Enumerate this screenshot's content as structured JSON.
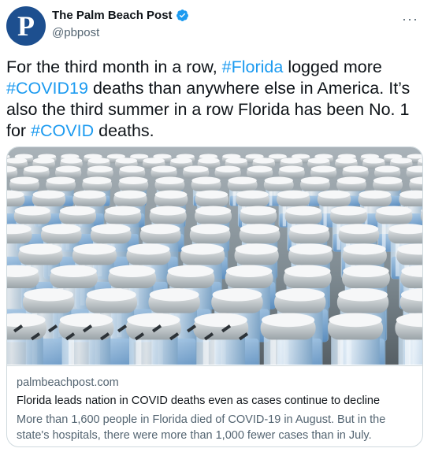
{
  "author": {
    "name": "The Palm Beach Post",
    "handle": "@pbpost",
    "avatar_letter": "P",
    "avatar_color": "#1d4f8f",
    "verified": true,
    "verified_color": "#1d9bf0"
  },
  "menu_icon": "more-dots-icon",
  "tweet": {
    "seg1": "For the third month in a row, ",
    "tag1": "#Florida",
    "seg2": " logged more",
    "tag2": "#COVID19",
    "seg3": " deaths than anywhere else in America. It’s also the third summer in a row Florida has been No. 1 for ",
    "tag3": "#COVID",
    "seg4": " deaths.",
    "hashtag_color": "#1d9bf0"
  },
  "card": {
    "domain": "palmbeachpost.com",
    "headline": "Florida leads nation in COVID deaths even as cases continue to decline",
    "description": "More than 1,600 people in Florida died of COVID-19 in August. But in the state's hospitals, there were more than 1,000 fewer cases than in July.",
    "image_subject": "rows of vaccine vials with grey caps on a production line"
  }
}
